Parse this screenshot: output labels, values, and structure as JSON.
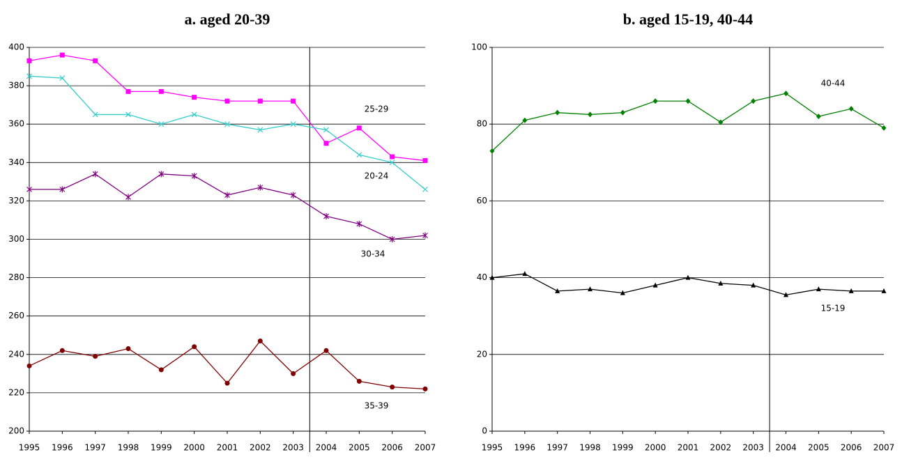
{
  "chart_data": [
    {
      "type": "line",
      "title": "a. aged 20-39",
      "x": [
        1995,
        1996,
        1997,
        1998,
        1999,
        2000,
        2001,
        2002,
        2003,
        2004,
        2005,
        2006,
        2007
      ],
      "xlim": [
        1995,
        2007
      ],
      "xticks": [
        1995,
        1996,
        1997,
        1998,
        1999,
        2000,
        2001,
        2002,
        2003,
        2004,
        2005,
        2006,
        2007
      ],
      "ylim": [
        200,
        400
      ],
      "yticks": [
        200,
        220,
        240,
        260,
        280,
        300,
        320,
        340,
        360,
        380,
        400
      ],
      "grid": true,
      "vline": 2003.5,
      "series": [
        {
          "name": "25-29",
          "color": "#ff00ff",
          "marker": "square",
          "values": [
            393,
            396,
            393,
            377,
            377,
            374,
            372,
            372,
            372,
            350,
            358,
            343,
            341
          ]
        },
        {
          "name": "20-24",
          "color": "#33cccc",
          "marker": "x",
          "values": [
            385,
            384,
            365,
            365,
            360,
            365,
            360,
            357,
            360,
            357,
            344,
            340,
            326
          ]
        },
        {
          "name": "30-34",
          "color": "#800080",
          "marker": "asterisk",
          "values": [
            326,
            326,
            334,
            322,
            334,
            333,
            323,
            327,
            323,
            312,
            308,
            300,
            302
          ]
        },
        {
          "name": "35-39",
          "color": "#800000",
          "marker": "circle",
          "values": [
            234,
            242,
            239,
            243,
            232,
            244,
            225,
            247,
            230,
            242,
            226,
            223,
            222
          ]
        }
      ]
    },
    {
      "type": "line",
      "title": "b. aged 15-19, 40-44",
      "x": [
        1995,
        1996,
        1997,
        1998,
        1999,
        2000,
        2001,
        2002,
        2003,
        2004,
        2005,
        2006,
        2007
      ],
      "xlim": [
        1995,
        2007
      ],
      "xticks": [
        1995,
        1996,
        1997,
        1998,
        1999,
        2000,
        2001,
        2002,
        2003,
        2004,
        2005,
        2006,
        2007
      ],
      "ylim": [
        0,
        100
      ],
      "yticks": [
        0,
        20,
        40,
        60,
        80,
        100
      ],
      "grid": true,
      "vline": 2003.5,
      "series": [
        {
          "name": "40-44",
          "color": "#008000",
          "marker": "diamond",
          "values": [
            73,
            81,
            83,
            82.5,
            83,
            86,
            86,
            80.5,
            86,
            88,
            82,
            84,
            79
          ]
        },
        {
          "name": "15-19",
          "color": "#000000",
          "marker": "triangle",
          "values": [
            40,
            41,
            36.5,
            37,
            36,
            38,
            40,
            38.5,
            38,
            35.5,
            37,
            36.5,
            36.5
          ]
        }
      ]
    }
  ]
}
